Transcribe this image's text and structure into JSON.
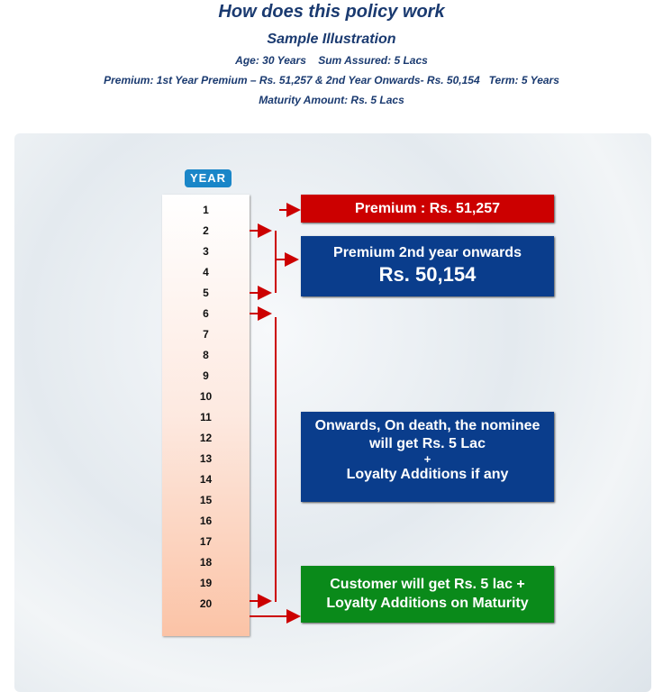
{
  "header": {
    "title": "How does this policy work",
    "subtitle": "Sample Illustration",
    "line1": "Age: 30 Years    Sum Assured: 5 Lacs",
    "line2": "Premium: 1st Year Premium – Rs. 51,257 & 2nd Year Onwards- Rs. 50,154   Term: 5 Years",
    "line3": "Maturity Amount: Rs. 5 Lacs"
  },
  "diagram": {
    "year_label": "YEAR",
    "years": [
      "1",
      "2",
      "3",
      "4",
      "5",
      "6",
      "7",
      "8",
      "9",
      "10",
      "11",
      "12",
      "13",
      "14",
      "15",
      "16",
      "17",
      "18",
      "19",
      "20"
    ],
    "box1": "Premium : Rs. 51,257",
    "box2_line1": "Premium 2nd year onwards",
    "box2_line2": "Rs. 50,154",
    "box3_line1": "Onwards, On death, the nominee",
    "box3_line2": "will get Rs. 5 Lac",
    "box3_line3": "+",
    "box3_line4": "Loyalty Additions if any",
    "box4_line1": "Customer will get Rs. 5 lac +",
    "box4_line2": "Loyalty Additions on Maturity",
    "colors": {
      "red": "#cc0000",
      "blue": "#0a3d8c",
      "green": "#0a8a1a",
      "arrow": "#cc0000",
      "badge": "#1a86c8"
    }
  }
}
